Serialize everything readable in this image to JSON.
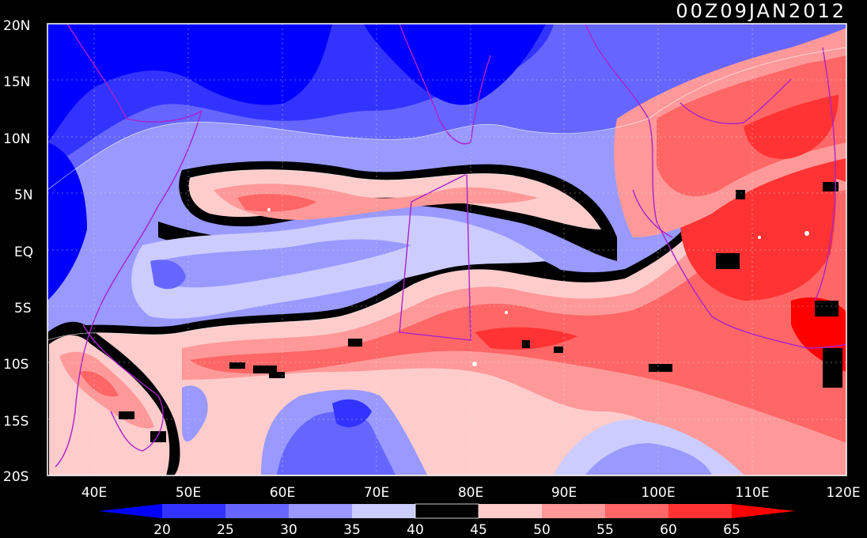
{
  "timestamp": "00Z09JAN2012",
  "lat_labels": [
    "20N",
    "15N",
    "10N",
    "5N",
    "EQ",
    "5S",
    "10S",
    "15S",
    "20S"
  ],
  "lon_labels": [
    "40E",
    "50E",
    "60E",
    "70E",
    "80E",
    "90E",
    "100E",
    "110E",
    "120E"
  ],
  "colorbar": {
    "ticks": [
      "20",
      "25",
      "30",
      "35",
      "40",
      "45",
      "50",
      "55",
      "60",
      "65"
    ],
    "colors": [
      "#0000ff",
      "#3333ff",
      "#6666ff",
      "#9999ff",
      "#ccccff",
      "#000000",
      "#ffcccc",
      "#ff9999",
      "#ff6666",
      "#ff3333",
      "#ff0000"
    ],
    "below_arrow_color": "#0000ff",
    "above_arrow_color": "#ff0000"
  },
  "map": {
    "lat_range": [
      -20,
      20
    ],
    "lon_range": [
      35,
      120
    ],
    "coastline_color": "#aa22cc"
  }
}
